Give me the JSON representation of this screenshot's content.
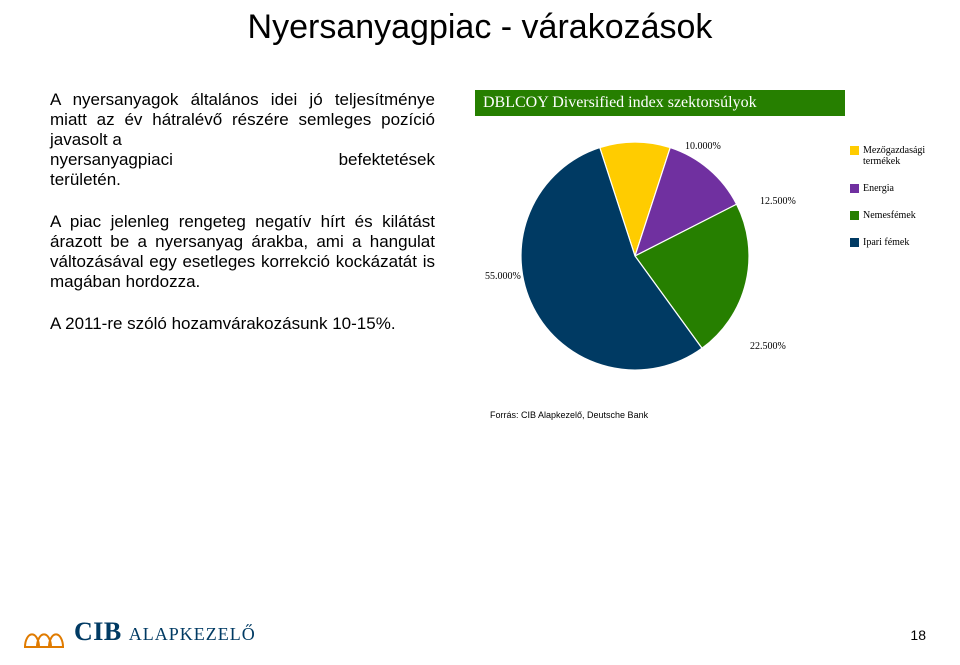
{
  "title": "Nyersanyagpiac - várakozások",
  "paragraphs": {
    "p1a": "A nyersanyagok általános idei jó teljesítménye miatt az év hátralévő részére semleges pozíció javasolt a",
    "p1b_left": "nyersanyagpiaci",
    "p1b_right": "befektetések",
    "p1c": "területén.",
    "p2": "A piac jelenleg rengeteg negatív hírt és kilátást árazott be a nyersanyag árakba, ami a hangulat változásával egy esetleges korrekció kockázatát is magában hordozza.",
    "p3": "A 2011-re szóló hozamvárakozásunk 10-15%."
  },
  "chart": {
    "title": "DBLCOY Diversified index szektorsúlyok",
    "type": "pie",
    "slices": [
      {
        "label": "Mezőgazdasági termékek",
        "value": 10.0,
        "value_text": "10.000%",
        "color": "#ffcc00"
      },
      {
        "label": "Energia",
        "value": 12.5,
        "value_text": "12.500%",
        "color": "#7030a0"
      },
      {
        "label": "Nemesfémek",
        "value": 22.5,
        "value_text": "22.500%",
        "color": "#267f00"
      },
      {
        "label": "Ipari fémek",
        "value": 55.0,
        "value_text": "55.000%",
        "color": "#003a63"
      }
    ],
    "background_color": "#ffffff"
  },
  "source": "Forrás: CIB Alapkezelő, Deutsche Bank",
  "brand": {
    "main": "CIB",
    "sub": "ALAPKEZELŐ"
  },
  "page_number": "18",
  "logo_colors": {
    "stroke": "#e07b00"
  }
}
